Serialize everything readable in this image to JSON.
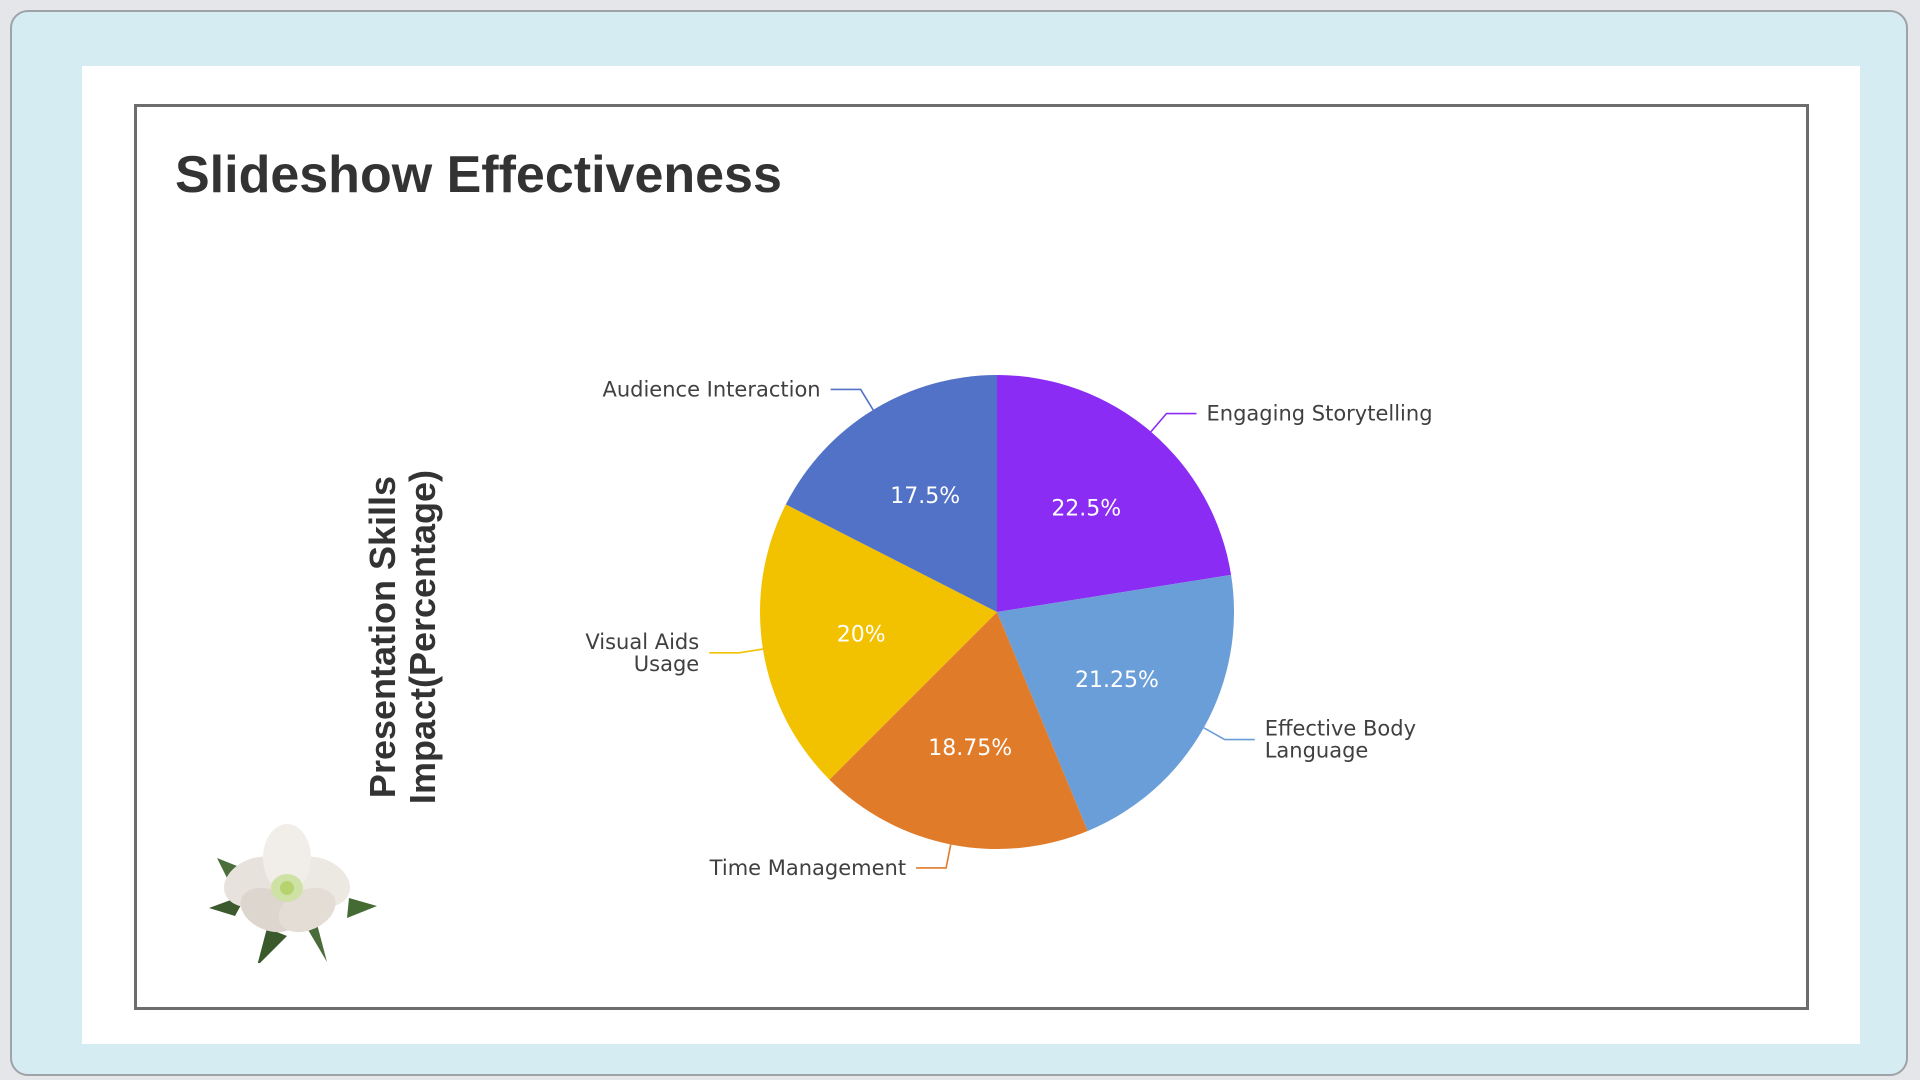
{
  "slide": {
    "title": "Slideshow Effectiveness"
  },
  "chart_data": {
    "type": "pie",
    "title": "Slideshow Effectiveness",
    "ylabel": [
      "Presentation Skills",
      "Impact(Percentage)"
    ],
    "categories": [
      "Engaging Storytelling",
      "Effective Body Language",
      "Time Management",
      "Visual Aids Usage",
      "Audience Interaction"
    ],
    "category_lines": [
      [
        "Engaging Storytelling"
      ],
      [
        "Effective Body",
        "Language"
      ],
      [
        "Time Management"
      ],
      [
        "Visual Aids",
        "Usage"
      ],
      [
        "Audience Interaction"
      ]
    ],
    "values": [
      22.5,
      21.25,
      18.75,
      20,
      17.5
    ],
    "value_labels": [
      "22.5%",
      "21.25%",
      "18.75%",
      "20%",
      "17.5%"
    ],
    "colors": [
      "#8a2cf3",
      "#6a9ed8",
      "#e07b2a",
      "#f2c100",
      "#5272c7"
    ],
    "start": "12 o'clock",
    "direction": "clockwise",
    "legend": "none"
  },
  "decor": {
    "image_icon": "white-flower-icon"
  }
}
